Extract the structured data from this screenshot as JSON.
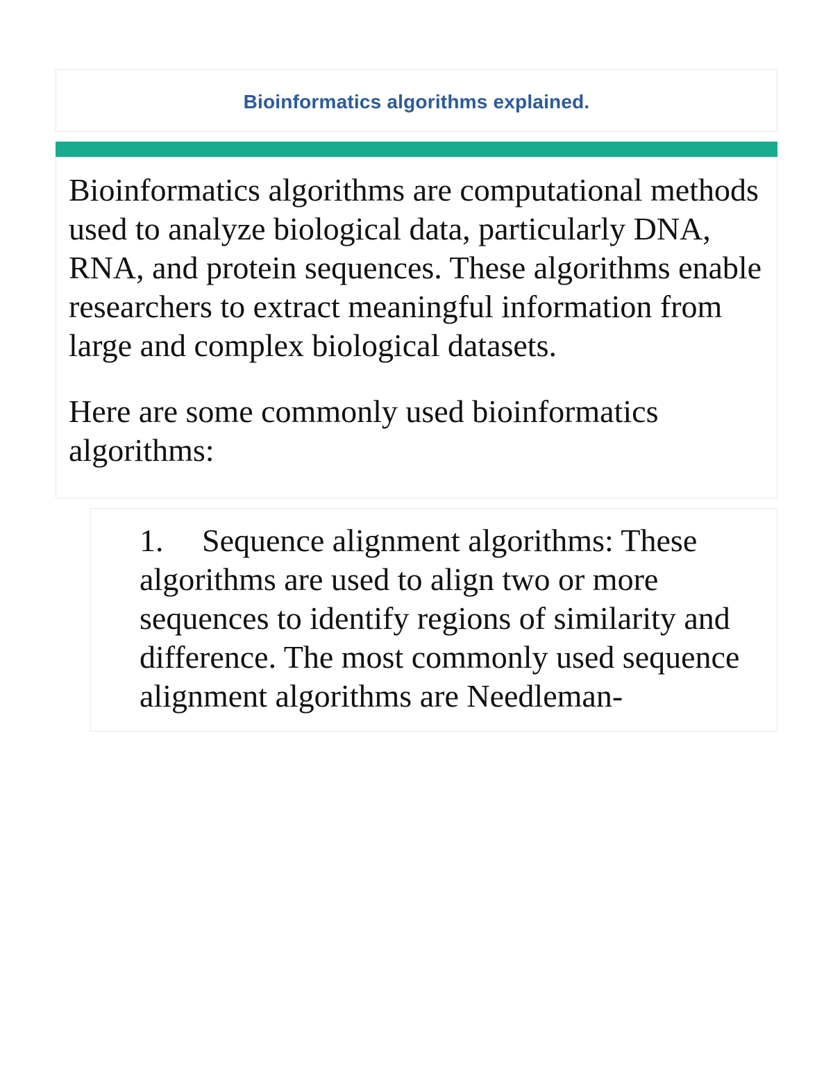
{
  "title": "Bioinformatics algorithms explained.",
  "colors": {
    "title_text": "#2b5a9e",
    "title_border": "#e3e7ea",
    "accent_bar": "#18ab8e",
    "box_border": "#e7ebee",
    "body_text": "#111111",
    "page_bg": "#ffffff"
  },
  "typography": {
    "title_font": "Verdana",
    "title_size_pt": 21,
    "title_weight": "bold",
    "body_font": "Times New Roman",
    "body_size_pt": 34
  },
  "intro": {
    "paragraph1": "Bioinformatics algorithms are computational methods used to analyze biological data, particularly DNA, RNA, and protein sequences. These algorithms enable researchers to extract meaningful information from large and complex biological datasets.",
    "paragraph2": "Here are some commonly used bioinformatics algorithms:"
  },
  "list": {
    "start": 1,
    "items": [
      {
        "number": "1.",
        "text": "Sequence alignment algorithms: These algorithms are used to align two or more sequences to identify regions of similarity and difference. The most commonly used sequence alignment algorithms are Needleman-"
      }
    ]
  }
}
